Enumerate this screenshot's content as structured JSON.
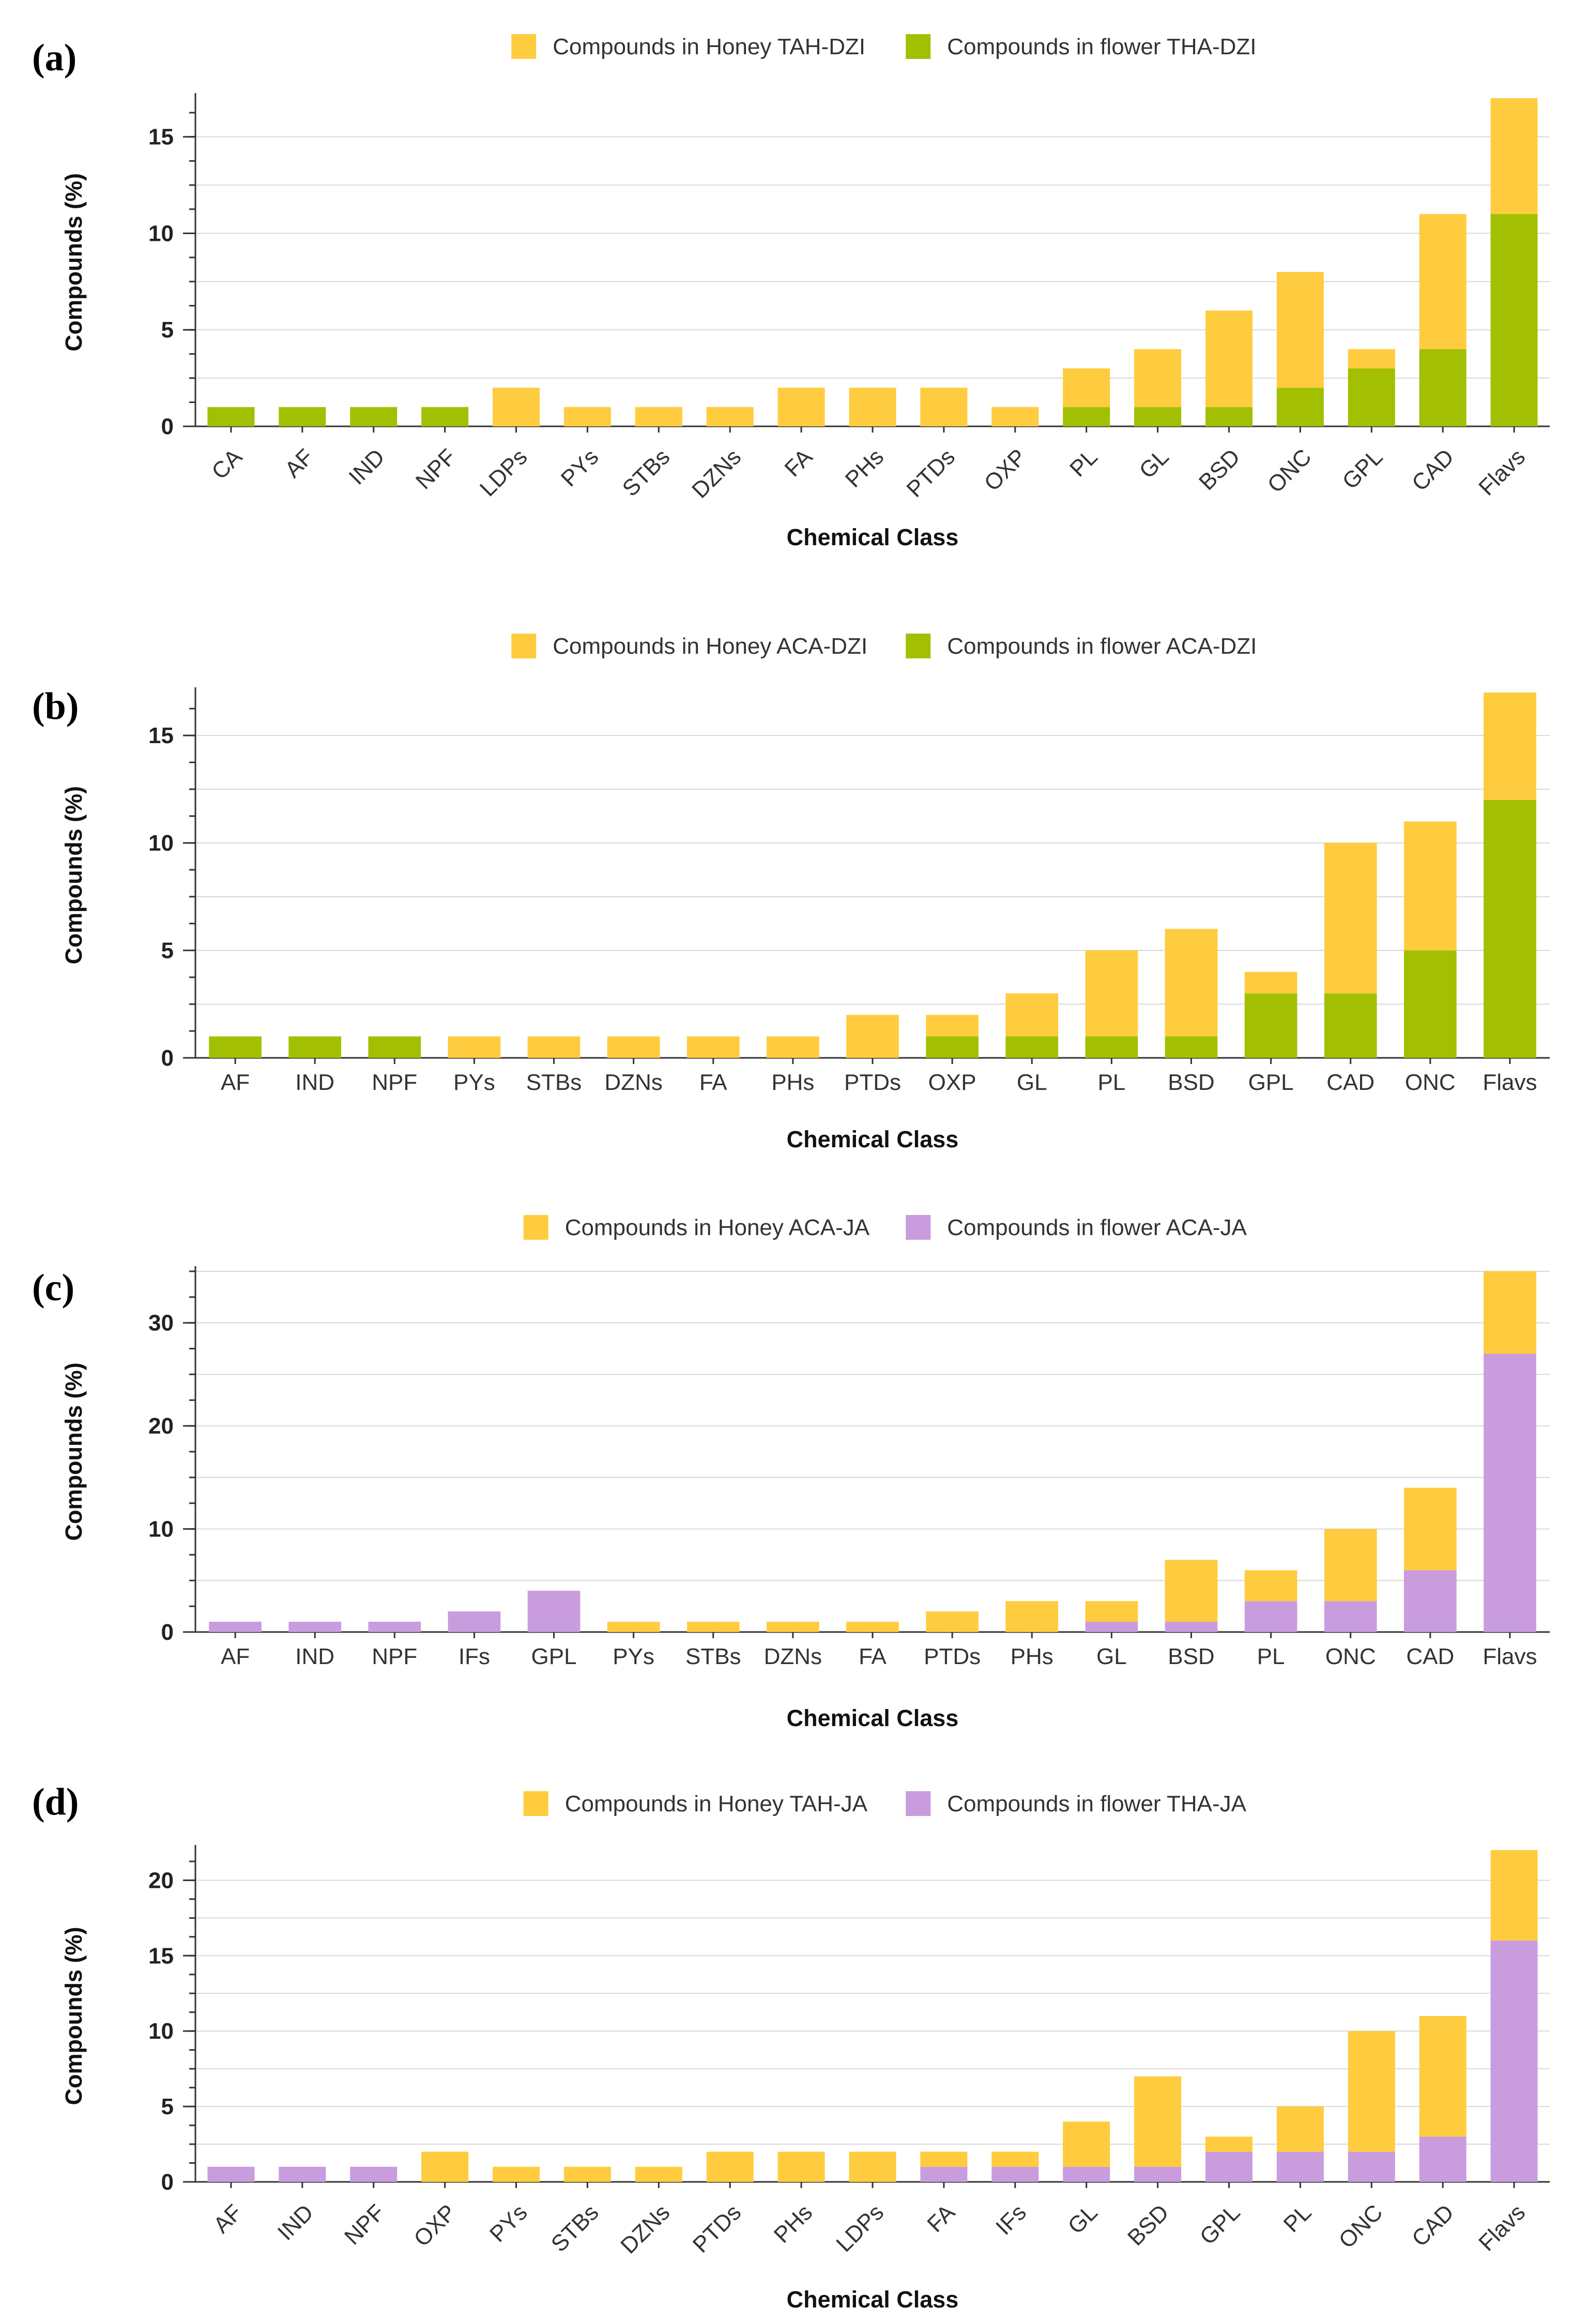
{
  "colors": {
    "honey": "#FFCC3F",
    "flower_green": "#A3BF02",
    "flower_purple": "#C99CDE",
    "grid": "#D9D9D9",
    "axis": "#333333"
  },
  "chart_data": [
    {
      "panel_label": "(a)",
      "type": "bar",
      "stacked": true,
      "title": "",
      "xlabel": "Chemical Class",
      "ylabel": "Compounds (%)",
      "ylim": [
        0,
        17
      ],
      "yticks": [
        0,
        5,
        10,
        15
      ],
      "rotated_labels": true,
      "categories": [
        "CA",
        "AF",
        "IND",
        "NPF",
        "LDPs",
        "PYs",
        "STBs",
        "DZNs",
        "FA",
        "PHs",
        "PTDs",
        "OXP",
        "PL",
        "GL",
        "BSD",
        "ONC",
        "GPL",
        "CAD",
        "Flavs"
      ],
      "series": [
        {
          "name": "Compounds in flower THA-DZI",
          "color": "#A3BF02",
          "values": [
            1,
            1,
            1,
            1,
            0,
            0,
            0,
            0,
            0,
            0,
            0,
            0,
            1,
            1,
            1,
            2,
            3,
            4,
            11
          ]
        },
        {
          "name": "Compounds in Honey TAH-DZI",
          "color": "#FFCC3F",
          "values": [
            0,
            0,
            0,
            0,
            2,
            1,
            1,
            1,
            2,
            2,
            2,
            1,
            2,
            3,
            5,
            6,
            1,
            7,
            6
          ]
        }
      ],
      "legend": [
        "Compounds in Honey TAH-DZI",
        "Compounds in flower THA-DZI"
      ]
    },
    {
      "panel_label": "(b)",
      "type": "bar",
      "stacked": true,
      "title": "",
      "xlabel": "Chemical Class",
      "ylabel": "Compounds (%)",
      "ylim": [
        0,
        17
      ],
      "yticks": [
        0,
        5,
        10,
        15
      ],
      "rotated_labels": false,
      "categories": [
        "AF",
        "IND",
        "NPF",
        "PYs",
        "STBs",
        "DZNs",
        "FA",
        "PHs",
        "PTDs",
        "OXP",
        "GL",
        "PL",
        "BSD",
        "GPL",
        "CAD",
        "ONC",
        "Flavs"
      ],
      "series": [
        {
          "name": "Compounds in flower ACA-DZI",
          "color": "#A3BF02",
          "values": [
            1,
            1,
            1,
            0,
            0,
            0,
            0,
            0,
            0,
            1,
            1,
            1,
            1,
            3,
            3,
            5,
            12
          ]
        },
        {
          "name": "Compounds in Honey ACA-DZI",
          "color": "#FFCC3F",
          "values": [
            0,
            0,
            0,
            1,
            1,
            1,
            1,
            1,
            2,
            1,
            2,
            4,
            5,
            1,
            7,
            6,
            5
          ]
        }
      ],
      "legend": [
        "Compounds in Honey ACA-DZI",
        "Compounds in flower ACA-DZI"
      ]
    },
    {
      "panel_label": "(c)",
      "type": "bar",
      "stacked": true,
      "title": "",
      "xlabel": "Chemical Class",
      "ylabel": "Compounds (%)",
      "ylim": [
        0,
        35
      ],
      "yticks": [
        0,
        10,
        20,
        30
      ],
      "rotated_labels": false,
      "categories": [
        "AF",
        "IND",
        "NPF",
        "IFs",
        "GPL",
        "PYs",
        "STBs",
        "DZNs",
        "FA",
        "PTDs",
        "PHs",
        "GL",
        "BSD",
        "PL",
        "ONC",
        "CAD",
        "Flavs"
      ],
      "series": [
        {
          "name": "Compounds in flower ACA-JA",
          "color": "#C99CDE",
          "values": [
            1,
            1,
            1,
            2,
            4,
            0,
            0,
            0,
            0,
            0,
            0,
            1,
            1,
            3,
            3,
            6,
            27
          ]
        },
        {
          "name": "Compounds in Honey ACA-JA",
          "color": "#FFCC3F",
          "values": [
            0,
            0,
            0,
            0,
            0,
            1,
            1,
            1,
            1,
            2,
            3,
            2,
            6,
            3,
            7,
            8,
            8
          ]
        }
      ],
      "legend": [
        "Compounds in Honey ACA-JA",
        "Compounds in flower ACA-JA"
      ]
    },
    {
      "panel_label": "(d)",
      "type": "bar",
      "stacked": true,
      "title": "",
      "xlabel": "Chemical Class",
      "ylabel": "Compounds (%)",
      "ylim": [
        0,
        22
      ],
      "yticks": [
        0,
        5,
        10,
        15,
        20
      ],
      "rotated_labels": true,
      "categories": [
        "AF",
        "IND",
        "NPF",
        "OXP",
        "PYs",
        "STBs",
        "DZNs",
        "PTDs",
        "PHs",
        "LDPs",
        "FA",
        "IFs",
        "GL",
        "BSD",
        "GPL",
        "PL",
        "ONC",
        "CAD",
        "Flavs"
      ],
      "series": [
        {
          "name": "Compounds in flower THA-JA",
          "color": "#C99CDE",
          "values": [
            1,
            1,
            1,
            0,
            0,
            0,
            0,
            0,
            0,
            0,
            1,
            1,
            1,
            1,
            2,
            2,
            2,
            3,
            16
          ]
        },
        {
          "name": "Compounds in Honey TAH-JA",
          "color": "#FFCC3F",
          "values": [
            0,
            0,
            0,
            2,
            1,
            1,
            1,
            2,
            2,
            2,
            1,
            1,
            3,
            6,
            1,
            3,
            8,
            8,
            6
          ]
        }
      ],
      "legend": [
        "Compounds in Honey TAH-JA",
        "Compounds in flower THA-JA"
      ]
    }
  ]
}
